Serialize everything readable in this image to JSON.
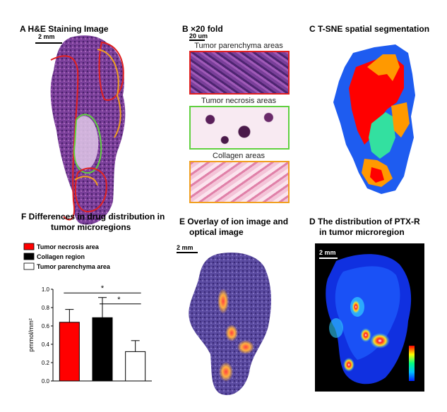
{
  "panels": {
    "a": {
      "title": "A  H&E Staining Image",
      "scale": "2 mm"
    },
    "b": {
      "title": "B      ×20 fold",
      "scale": "20 um",
      "labels": [
        "Tumor parenchyma areas",
        "Tumor necrosis areas",
        "Collagen areas"
      ]
    },
    "c": {
      "title": "C  T-SNE spatial segmentation"
    },
    "f": {
      "title_line1": "F  Differences in drug distribution in",
      "title_line2": "tumor microregions"
    },
    "e": {
      "title_line1": "E  Overlay of ion image and",
      "title_line2": "optical image",
      "scale": "2 mm"
    },
    "d": {
      "title_line1": "D  The distribution of PTX-R",
      "title_line2": "in tumor microregion",
      "scale": "2 mm"
    }
  },
  "colors": {
    "necrosis": "#ff0000",
    "collagen": "#000000",
    "parenchyma": "#ffffff",
    "seg_blue": "#1e5cf0",
    "seg_red": "#ff0000",
    "seg_orange": "#ff9900",
    "seg_green": "#33e0a0",
    "border_parenchyma": "#e02020",
    "border_necrosis": "#60d040",
    "border_collagen": "#f0a020"
  },
  "chart_data": {
    "type": "bar",
    "categories": [
      "Tumor necrosis area",
      "Collagen region",
      "Tumor parenchyma area"
    ],
    "values": [
      0.64,
      0.69,
      0.32
    ],
    "errors": [
      0.14,
      0.22,
      0.12
    ],
    "ylabel": "pmmol/mm²",
    "ylim": [
      0,
      1.0
    ],
    "yticks": [
      "0.0",
      "0.2",
      "0.4",
      "0.6",
      "0.8",
      "1.0"
    ],
    "legend": [
      "Tumor necrosis area",
      "Collagen region",
      "Tumor parenchyma area"
    ],
    "legend_position": "top-left",
    "significance": [
      "*",
      "*"
    ]
  }
}
